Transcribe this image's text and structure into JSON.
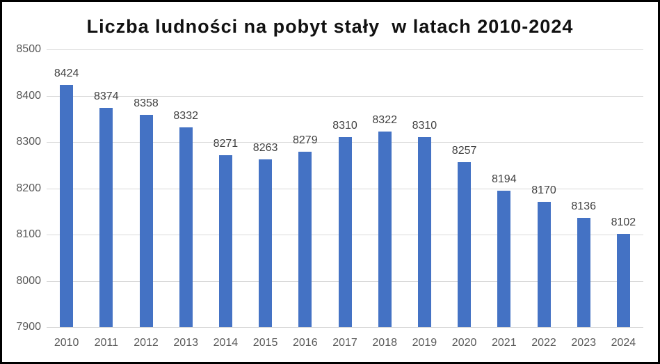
{
  "chart_data": {
    "type": "bar",
    "title": "Liczba ludności na pobyt stały  w latach 2010-2024",
    "categories": [
      "2010",
      "2011",
      "2012",
      "2013",
      "2014",
      "2015",
      "2016",
      "2017",
      "2018",
      "2019",
      "2020",
      "2021",
      "2022",
      "2023",
      "2024"
    ],
    "values": [
      8424,
      8374,
      8358,
      8332,
      8271,
      8263,
      8279,
      8310,
      8322,
      8310,
      8257,
      8194,
      8170,
      8136,
      8102
    ],
    "xlabel": "",
    "ylabel": "",
    "ylim": [
      7900,
      8500
    ],
    "ytick_step": 100,
    "ytick_labels": [
      "8500",
      "8400",
      "8300",
      "8200",
      "8100",
      "8000",
      "7900"
    ],
    "grid": true,
    "legend": "none",
    "data_labels": true,
    "bar_color": "#4472c4",
    "gridline_color": "#d9d9d9",
    "title_color": "#111111",
    "data_label_color": "#414141",
    "tick_color": "#595959",
    "frame_border_color": "#000000"
  }
}
